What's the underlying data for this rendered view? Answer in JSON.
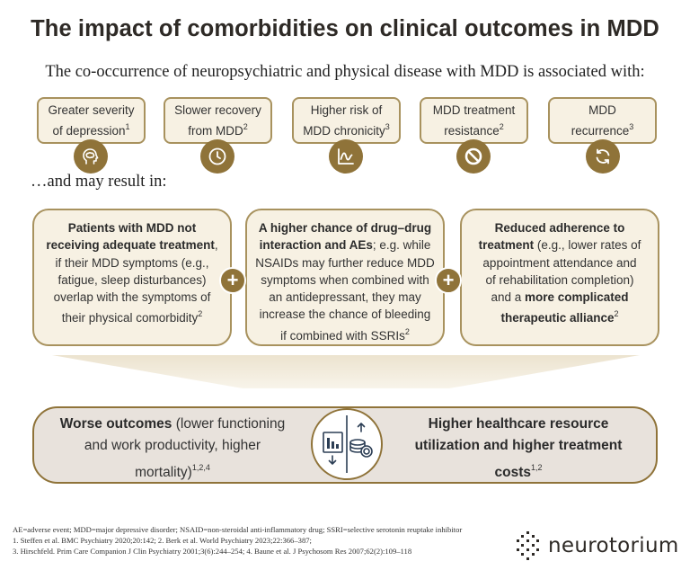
{
  "title": "The impact of comorbidities on clinical outcomes in MDD",
  "subtitle": "The co-occurrence of neuropsychiatric and physical disease with MDD is associated with:",
  "associations": [
    {
      "line1": "Greater severity",
      "line2": "of depression",
      "ref": "1",
      "icon": "head-brain-icon"
    },
    {
      "line1": "Slower recovery",
      "line2": "from MDD",
      "ref": "2",
      "icon": "clock-icon"
    },
    {
      "line1": "Higher risk of",
      "line2": "MDD chronicity",
      "ref": "3",
      "icon": "chart-line-icon"
    },
    {
      "line1": "MDD treatment",
      "line2": "resistance",
      "ref": "2",
      "icon": "prohibited-icon"
    },
    {
      "line1": "MDD",
      "line2": "recurrence",
      "ref": "3",
      "icon": "cycle-arrows-icon"
    }
  ],
  "result_label": "…and may result in:",
  "results": {
    "r1": {
      "bold1": "Patients with MDD not",
      "bold2": "receiving adequate treatment",
      "t1": ",",
      "t2": "if their MDD symptoms (e.g.,",
      "t3": "fatigue, sleep disturbances)",
      "t4": "overlap with the symptoms of",
      "t5": "their physical comorbidity",
      "ref": "2"
    },
    "r2": {
      "bold1": "A higher chance of drug–drug",
      "bold2": "interaction and AEs",
      "t1": "; e.g. while",
      "t2": "NSAIDs may further reduce MDD",
      "t3": "symptoms when combined with",
      "t4": "an antidepressant, they may",
      "t5": "increase the chance of bleeding",
      "t6": "if combined with SSRIs",
      "ref": "2"
    },
    "r3": {
      "bold1": "Reduced adherence to",
      "bold2": "treatment",
      "t1": " (e.g., lower rates of",
      "t2": "appointment attendance and",
      "t3": "of rehabilitation completion)",
      "t4": "and a ",
      "bold3": "more complicated",
      "bold4": "therapeutic alliance",
      "ref": "2"
    }
  },
  "plus_symbol": "+",
  "outcomes": {
    "left_bold": "Worse outcomes",
    "left_t1": " (lower functioning",
    "left_t2": "and work productivity, higher",
    "left_t3": "mortality)",
    "left_ref": "1,2,4",
    "right_b1": "Higher healthcare resource",
    "right_b2": "utilization and higher treatment",
    "right_b3": "costs",
    "right_ref": "1,2"
  },
  "footnotes": {
    "abbrev": "AE=adverse event; MDD=major depressive disorder; NSAID=non-steroidal anti-inflammatory drug; SSRI=selective serotonin reuptake inhibitor",
    "ref1": "1. Steffen et al. BMC Psychiatry 2020;20:142; 2. Berk et al. World Psychiatry 2023;22:366–387;",
    "ref2": "3. Hirschfeld. Prim Care Companion J Clin Psychiatry 2001;3(6):244–254; 4. Baune et al. J Psychosom Res 2007;62(2):109–118"
  },
  "logo_text": "neurotorium",
  "colors": {
    "accent": "#8f7339",
    "box_fill": "#f7f1e3",
    "box_border": "#a8925e",
    "bar_fill": "#e8e2dc"
  }
}
